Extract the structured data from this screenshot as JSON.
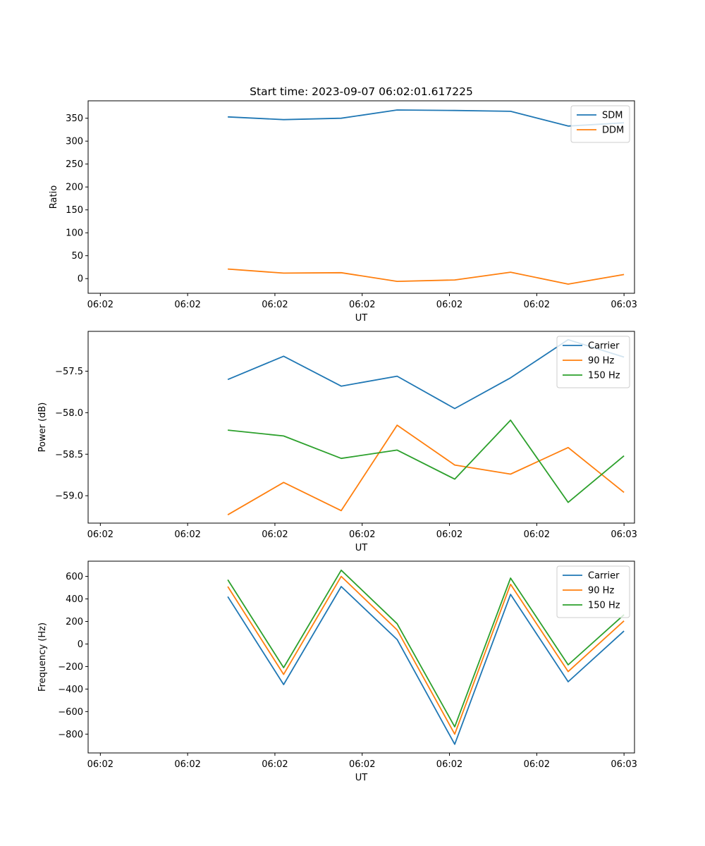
{
  "figure": {
    "title": "Start time: 2023-09-07 06:02:01.617225"
  },
  "chart_data": [
    {
      "type": "line",
      "title": "Start time: 2023-09-07 06:02:01.617225",
      "xlabel": "UT",
      "ylabel": "Ratio",
      "x_tick_labels": [
        "06:02",
        "06:02",
        "06:02",
        "06:02",
        "06:02",
        "06:02",
        "06:03"
      ],
      "x": [
        1.62,
        1.94,
        2.27,
        2.59,
        2.92,
        3.24,
        3.57,
        3.89
      ],
      "xlim": [
        0.82,
        3.95
      ],
      "x_ticks": [
        0.89,
        1.39,
        1.89,
        2.39,
        2.89,
        3.39,
        3.89
      ],
      "ylim": [
        -32,
        388
      ],
      "y_ticks": [
        0,
        50,
        100,
        150,
        200,
        250,
        300,
        350
      ],
      "legend": "top-right",
      "series": [
        {
          "name": "SDM",
          "color": "#1f77b4",
          "values": [
            353,
            347,
            350,
            368,
            367,
            365,
            333,
            340
          ]
        },
        {
          "name": "DDM",
          "color": "#ff7f0e",
          "values": [
            21,
            12,
            13,
            -6,
            -3,
            14,
            -12,
            9
          ]
        }
      ]
    },
    {
      "type": "line",
      "title": "",
      "xlabel": "UT",
      "ylabel": "Power (dB)",
      "x_tick_labels": [
        "06:02",
        "06:02",
        "06:02",
        "06:02",
        "06:02",
        "06:02",
        "06:03"
      ],
      "x": [
        1.62,
        1.94,
        2.27,
        2.59,
        2.92,
        3.24,
        3.57,
        3.89
      ],
      "xlim": [
        0.82,
        3.95
      ],
      "x_ticks": [
        0.89,
        1.39,
        1.89,
        2.39,
        2.89,
        3.39,
        3.89
      ],
      "ylim": [
        -59.33,
        -57.02
      ],
      "y_ticks": [
        -59.0,
        -58.5,
        -58.0,
        -57.5
      ],
      "y_tick_labels": [
        "−59.0",
        "−58.5",
        "−58.0",
        "−57.5"
      ],
      "legend": "top-right",
      "series": [
        {
          "name": "Carrier",
          "color": "#1f77b4",
          "values": [
            -57.6,
            -57.32,
            -57.68,
            -57.56,
            -57.95,
            -57.58,
            -57.12,
            -57.33
          ]
        },
        {
          "name": "90 Hz",
          "color": "#ff7f0e",
          "values": [
            -59.23,
            -58.84,
            -59.18,
            -58.15,
            -58.63,
            -58.74,
            -58.42,
            -58.96
          ]
        },
        {
          "name": "150 Hz",
          "color": "#2ca02c",
          "values": [
            -58.21,
            -58.28,
            -58.55,
            -58.45,
            -58.8,
            -58.09,
            -59.08,
            -58.52
          ]
        }
      ]
    },
    {
      "type": "line",
      "title": "",
      "xlabel": "UT",
      "ylabel": "Frequency (Hz)",
      "x_tick_labels": [
        "06:02",
        "06:02",
        "06:02",
        "06:02",
        "06:02",
        "06:02",
        "06:03"
      ],
      "x": [
        1.62,
        1.94,
        2.27,
        2.59,
        2.92,
        3.24,
        3.57,
        3.89
      ],
      "xlim": [
        0.82,
        3.95
      ],
      "x_ticks": [
        0.89,
        1.39,
        1.89,
        2.39,
        2.89,
        3.39,
        3.89
      ],
      "ylim": [
        -967,
        735
      ],
      "y_ticks": [
        -800,
        -600,
        -400,
        -200,
        0,
        200,
        400,
        600
      ],
      "y_tick_labels": [
        "−800",
        "−600",
        "−400",
        "−200",
        "0",
        "200",
        "400",
        "600"
      ],
      "legend": "top-right",
      "series": [
        {
          "name": "Carrier",
          "color": "#1f77b4",
          "values": [
            420,
            -360,
            510,
            40,
            -890,
            440,
            -335,
            115
          ]
        },
        {
          "name": "90 Hz",
          "color": "#ff7f0e",
          "values": [
            510,
            -270,
            600,
            125,
            -800,
            530,
            -245,
            205
          ]
        },
        {
          "name": "150 Hz",
          "color": "#2ca02c",
          "values": [
            570,
            -210,
            655,
            180,
            -735,
            585,
            -185,
            260
          ]
        }
      ]
    }
  ]
}
